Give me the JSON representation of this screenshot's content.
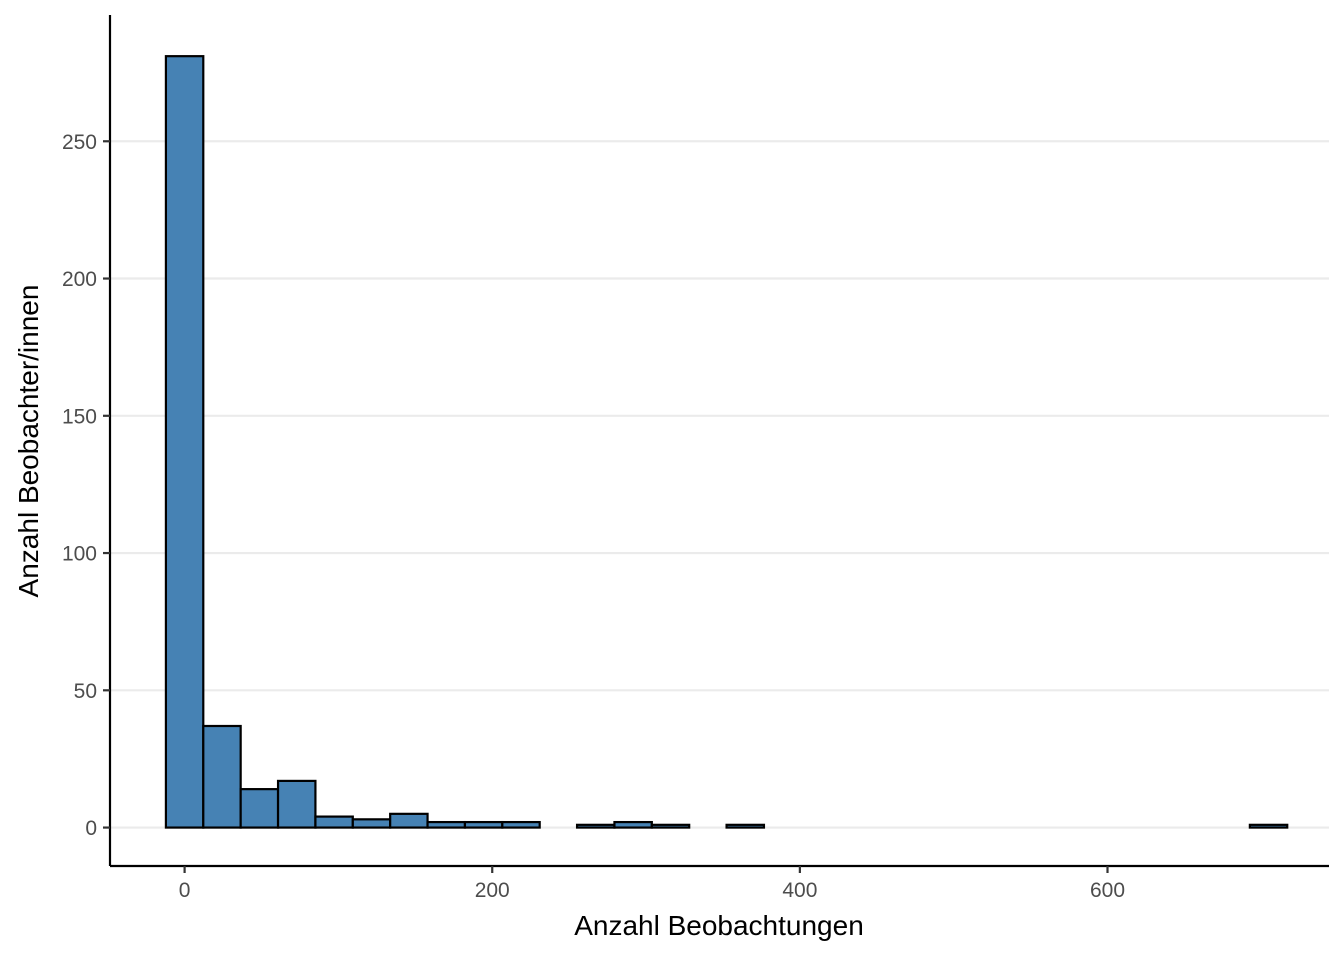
{
  "chart_data": {
    "type": "bar",
    "xlabel": "Anzahl Beobachtungen",
    "ylabel": "Anzahl Beobachter/innen",
    "bar_color": "#4682B4",
    "outline_color": "#000000",
    "grid": "horizontal-major",
    "legend": "none",
    "xlim": [
      -48.5,
      744
    ],
    "ylim": [
      -14,
      296
    ],
    "x_ticks": [
      0,
      200,
      400,
      600
    ],
    "x_tick_labels": [
      "0",
      "200",
      "400",
      "600"
    ],
    "y_ticks": [
      0,
      50,
      100,
      150,
      200,
      250
    ],
    "y_tick_labels": [
      "0",
      "50",
      "100",
      "150",
      "200",
      "250"
    ],
    "bin_width": 24.3,
    "x": [
      0.0,
      24.3,
      48.6,
      72.9,
      97.2,
      121.5,
      145.8,
      170.1,
      194.4,
      218.7,
      243.0,
      267.3,
      291.6,
      315.9,
      340.2,
      364.5,
      388.8,
      413.1,
      437.4,
      461.7,
      486.0,
      510.3,
      534.6,
      558.9,
      583.2,
      607.5,
      631.8,
      656.1,
      680.4,
      704.7
    ],
    "values": [
      281,
      37,
      14,
      17,
      4,
      3,
      5,
      2,
      2,
      2,
      0,
      1,
      2,
      1,
      0,
      1,
      0,
      0,
      0,
      0,
      0,
      0,
      0,
      0,
      0,
      0,
      0,
      0,
      0,
      1
    ]
  }
}
